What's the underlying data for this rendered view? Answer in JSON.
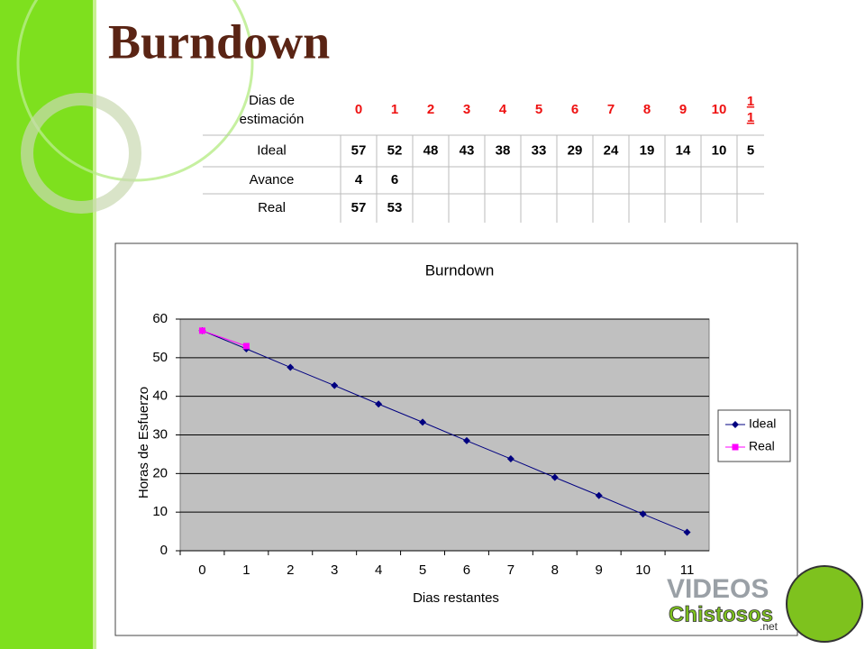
{
  "header": {
    "title": "Burndown"
  },
  "table": {
    "header": [
      "Dias de estimación",
      "0",
      "1",
      "2",
      "3",
      "4",
      "5",
      "6",
      "7",
      "8",
      "9",
      "10",
      "11"
    ],
    "rows": [
      [
        "Ideal",
        "57",
        "52",
        "48",
        "43",
        "38",
        "33",
        "29",
        "24",
        "19",
        "14",
        "10",
        "5"
      ],
      [
        "Avance",
        "4",
        "6"
      ],
      [
        "Real",
        "57",
        "53"
      ]
    ]
  },
  "chart_data": {
    "type": "line",
    "title": "Burndown",
    "x_label": "Dias restantes",
    "y_label": "Horas de Esfuerzo",
    "categories": [
      "0",
      "1",
      "2",
      "3",
      "4",
      "5",
      "6",
      "7",
      "8",
      "9",
      "10",
      "11"
    ],
    "series": [
      {
        "name": "Ideal",
        "color": "#000080",
        "marker": "diamond",
        "values": [
          57,
          52.3,
          47.5,
          42.8,
          38,
          33.3,
          28.5,
          23.8,
          19,
          14.3,
          9.5,
          4.8
        ]
      },
      {
        "name": "Real",
        "color": "#ff00ff",
        "marker": "square",
        "values": [
          57,
          53,
          null,
          null,
          null,
          null,
          null,
          null,
          null,
          null,
          null,
          null
        ]
      }
    ],
    "ylim": [
      0,
      60
    ],
    "yticks": [
      0,
      10,
      20,
      30,
      40,
      50,
      60
    ],
    "grid": true,
    "legend": "right"
  },
  "watermark": {
    "line1": "VIDEOS",
    "line2": "Chistosos",
    "line3": ".net"
  }
}
